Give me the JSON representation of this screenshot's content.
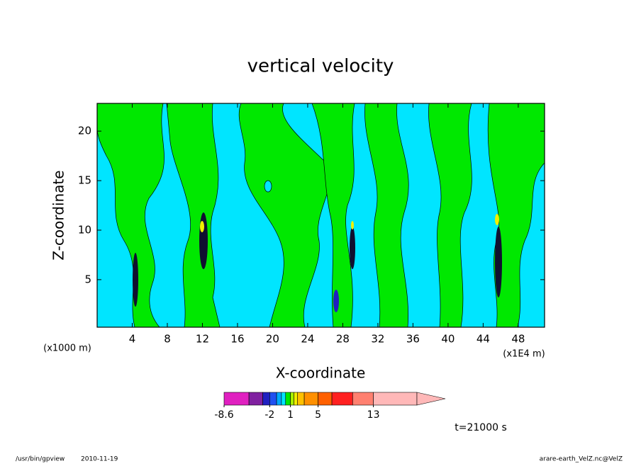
{
  "chart_data": {
    "type": "contour",
    "title": "vertical velocity",
    "x_label": "X-coordinate",
    "y_label": "Z-coordinate",
    "x_unit": "(x1E4 m)",
    "y_unit": "(x1000 m)",
    "xlim": [
      0,
      51
    ],
    "xticks": [
      4,
      8,
      12,
      16,
      20,
      24,
      28,
      32,
      36,
      40,
      44,
      48
    ],
    "ylim": [
      0.2,
      22.8
    ],
    "yticks": [
      5,
      10,
      15,
      20
    ],
    "background_color": "#00e5ff",
    "colorbar": {
      "levels": [
        -8.6,
        -5,
        -3,
        -2,
        -1,
        -0.3,
        0.3,
        1,
        1.5,
        2,
        3,
        5,
        7,
        10,
        13
      ],
      "colors": [
        "#e020c0",
        "#8020a0",
        "#2020c0",
        "#2050f0",
        "#00a8ff",
        "#00e5ff",
        "#00e800",
        "#a8f000",
        "#f0f000",
        "#ffc000",
        "#ff9000",
        "#ff6000",
        "#ff2020",
        "#ff8070",
        "#ffb8b8"
      ],
      "lim": [
        -8.6,
        19.3
      ],
      "ticks": [
        -8.6,
        -2,
        1,
        5,
        13
      ]
    },
    "time_label": "t=21000 s",
    "footer_program": "/usr/bin/gpview",
    "footer_date": "2010-11-19",
    "footer_source": "arare-earth_VelZ.nc@VelZ"
  }
}
